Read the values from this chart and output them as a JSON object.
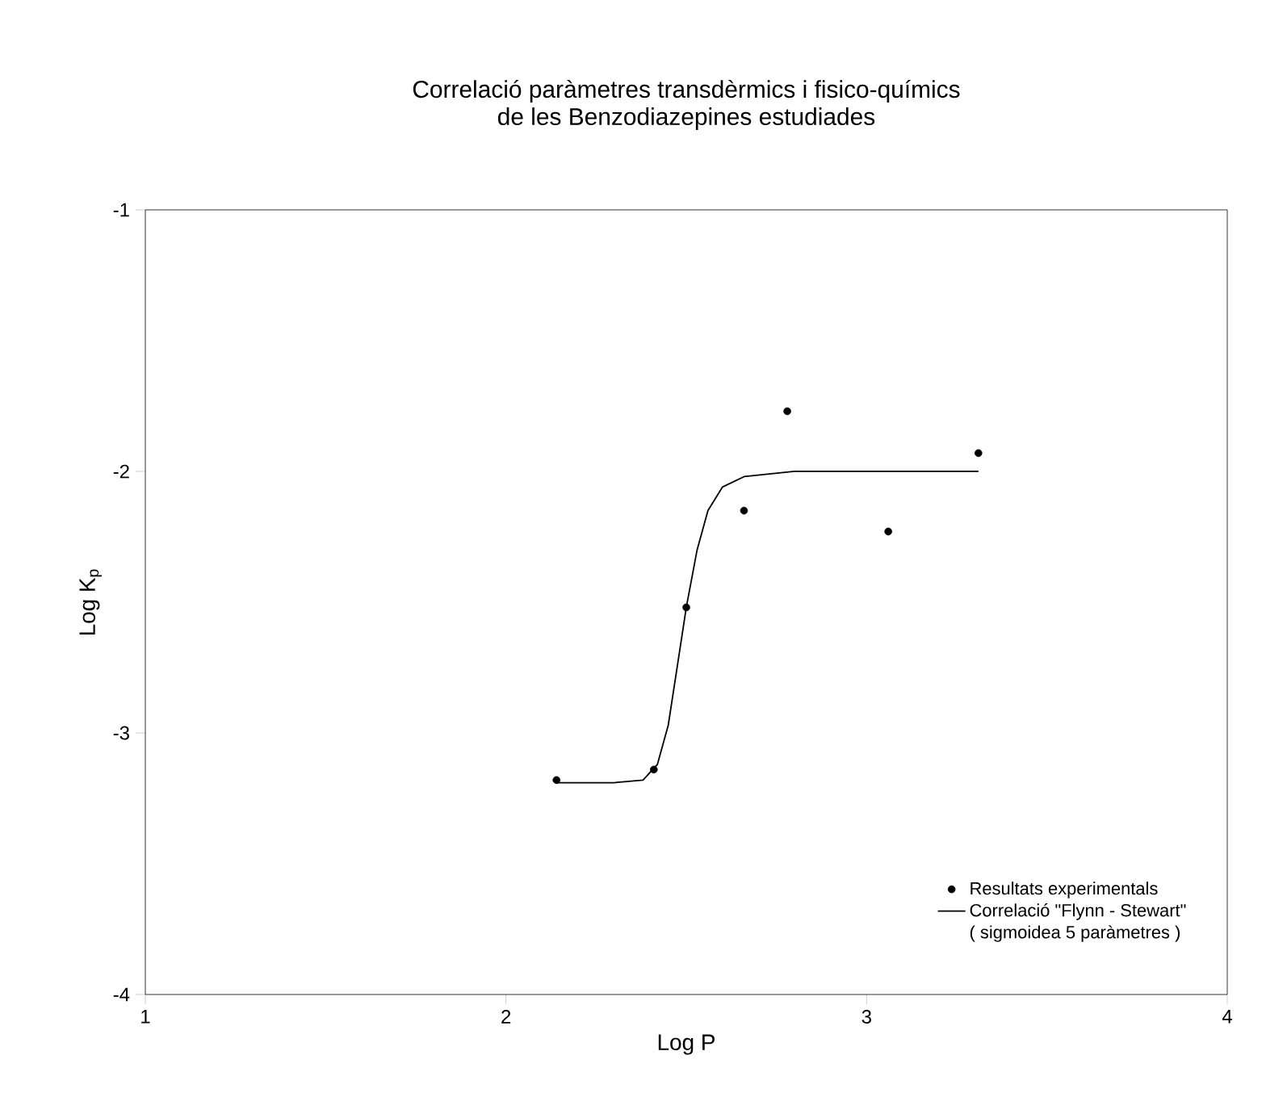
{
  "chart_data": {
    "type": "scatter",
    "title": "Correlació paràmetres transdèrmics i fisico-químics",
    "subtitle": "de les Benzodiazepines estudiades",
    "xlabel": "Log P",
    "ylabel": "Log K$_{p}$",
    "xlim": [
      1,
      4
    ],
    "ylim": [
      -4,
      -1
    ],
    "xticks": [
      1,
      2,
      3,
      4
    ],
    "yticks": [
      -4,
      -3,
      -2,
      -1
    ],
    "grid": false,
    "legend": "bottom right",
    "annotations": [
      "( sigmoidea 5 paràmetres )"
    ],
    "series": [
      {
        "name": "Resultats experimentals",
        "marker": "circle",
        "color": "#000000",
        "x": [
          2.14,
          2.41,
          2.5,
          2.66,
          2.78,
          3.06,
          3.31
        ],
        "values": [
          -3.18,
          -3.14,
          -2.52,
          -2.15,
          -1.77,
          -2.23,
          -1.93
        ]
      },
      {
        "name": "Correlació \"Flynn - Stewart\"",
        "type": "line",
        "marker": "none",
        "color": "#000000",
        "line_style": "solid",
        "x": [
          2.14,
          2.3,
          2.38,
          2.42,
          2.45,
          2.48,
          2.5,
          2.53,
          2.56,
          2.6,
          2.66,
          2.8,
          3.0,
          3.31
        ],
        "values": [
          -3.19,
          -3.19,
          -3.18,
          -3.12,
          -2.97,
          -2.7,
          -2.52,
          -2.3,
          -2.15,
          -2.06,
          -2.02,
          -2.0,
          -2.0,
          -2.0
        ]
      }
    ]
  }
}
